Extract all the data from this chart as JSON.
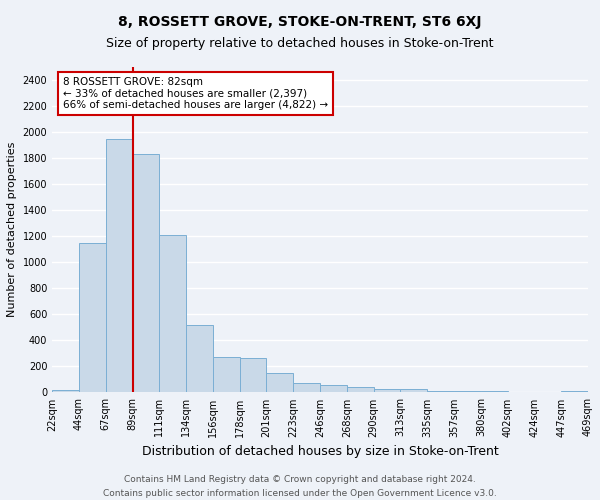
{
  "title": "8, ROSSETT GROVE, STOKE-ON-TRENT, ST6 6XJ",
  "subtitle": "Size of property relative to detached houses in Stoke-on-Trent",
  "xlabel": "Distribution of detached houses by size in Stoke-on-Trent",
  "ylabel": "Number of detached properties",
  "bar_values": [
    20,
    1150,
    1950,
    1830,
    1210,
    515,
    270,
    265,
    150,
    75,
    60,
    40,
    30,
    30,
    15,
    10,
    8,
    5,
    5,
    10
  ],
  "bar_labels": [
    "22sqm",
    "44sqm",
    "67sqm",
    "89sqm",
    "111sqm",
    "134sqm",
    "156sqm",
    "178sqm",
    "201sqm",
    "223sqm",
    "246sqm",
    "268sqm",
    "290sqm",
    "313sqm",
    "335sqm",
    "357sqm",
    "380sqm",
    "402sqm",
    "424sqm",
    "447sqm",
    "469sqm"
  ],
  "bar_color": "#c9d9e8",
  "bar_edgecolor": "#7bafd4",
  "vline_color": "#cc0000",
  "annotation_text": "8 ROSSETT GROVE: 82sqm\n← 33% of detached houses are smaller (2,397)\n66% of semi-detached houses are larger (4,822) →",
  "annotation_box_edgecolor": "#cc0000",
  "annotation_box_facecolor": "#ffffff",
  "ylim": [
    0,
    2500
  ],
  "yticks": [
    0,
    200,
    400,
    600,
    800,
    1000,
    1200,
    1400,
    1600,
    1800,
    2000,
    2200,
    2400
  ],
  "footer_line1": "Contains HM Land Registry data © Crown copyright and database right 2024.",
  "footer_line2": "Contains public sector information licensed under the Open Government Licence v3.0.",
  "bg_color": "#eef2f8",
  "grid_color": "#ffffff",
  "title_fontsize": 10,
  "subtitle_fontsize": 9,
  "xlabel_fontsize": 9,
  "ylabel_fontsize": 8,
  "tick_fontsize": 7,
  "footer_fontsize": 6.5,
  "vline_pos": 3.0
}
